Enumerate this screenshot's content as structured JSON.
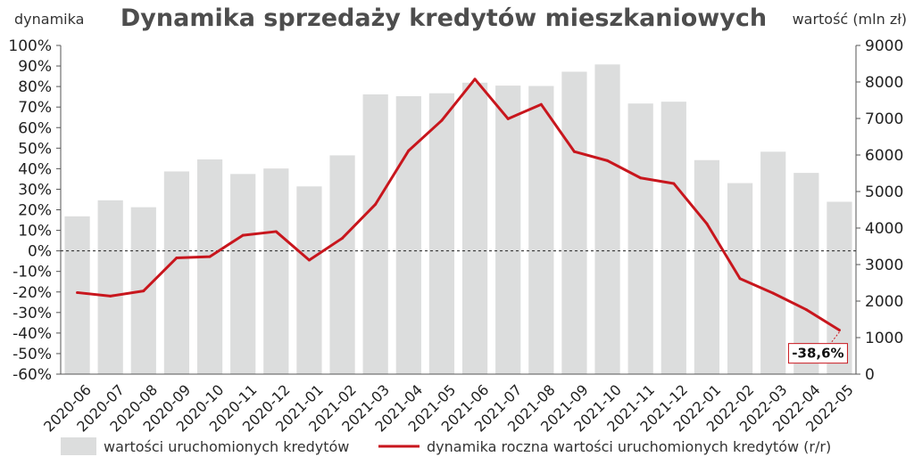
{
  "chart_data": {
    "type": "bar+line",
    "title": "Dynamika sprzedaży kredytów mieszkaniowych",
    "left_axis_label": "dynamika",
    "right_axis_label": "wartość (mln zł)",
    "categories": [
      "2020-06",
      "2020-07",
      "2020-08",
      "2020-09",
      "2020-10",
      "2020-11",
      "2020-12",
      "2021-01",
      "2021-02",
      "2021-03",
      "2021-04",
      "2021-05",
      "2021-06",
      "2021-07",
      "2021-08",
      "2021-09",
      "2021-10",
      "2021-11",
      "2021-12",
      "2022-01",
      "2022-02",
      "2022-03",
      "2022-04",
      "2022-05"
    ],
    "left_axis": {
      "min": -60,
      "max": 100,
      "step": 10,
      "unit": "%"
    },
    "right_axis": {
      "min": 0,
      "max": 9000,
      "step": 1000
    },
    "series": [
      {
        "name": "wartości uruchomionych kredytów",
        "type": "bar",
        "axis": "right",
        "color": "#dcdddd",
        "values": [
          4320,
          4760,
          4570,
          5550,
          5880,
          5480,
          5630,
          5140,
          5990,
          7660,
          7610,
          7690,
          7980,
          7900,
          7890,
          8280,
          8480,
          7410,
          7460,
          5860,
          5230,
          6090,
          5510,
          4720
        ]
      },
      {
        "name": "dynamika roczna wartości uruchomionych kredytów (r/r)",
        "type": "line",
        "axis": "left",
        "color": "#c8161d",
        "values": [
          -20.3,
          -22.0,
          -19.5,
          -3.4,
          -2.8,
          7.6,
          9.4,
          -4.5,
          6.2,
          22.7,
          48.8,
          63.5,
          83.6,
          64.3,
          71.3,
          48.3,
          43.9,
          35.5,
          32.8,
          13.2,
          -13.5,
          -20.6,
          -28.6,
          -38.6
        ]
      }
    ],
    "annotations": [
      {
        "category": "2022-05",
        "text": "-38,6%"
      }
    ],
    "zero_line": "dashed",
    "legend_position": "bottom"
  }
}
